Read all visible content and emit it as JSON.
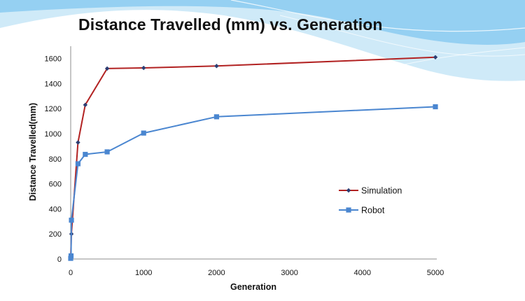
{
  "colors": {
    "simulation": "#b22222",
    "robot": "#4a86d0",
    "banner_light": "#a8d8f2",
    "banner_mid": "#7cc4ef",
    "axis": "#8c8c8c"
  },
  "chart_data": {
    "type": "line",
    "title": "Distance Travelled (mm) vs. Generation",
    "xlabel": "Generation",
    "ylabel": "Distance Travelled(mm)",
    "xlim": [
      0,
      5000
    ],
    "ylim": [
      0,
      1700
    ],
    "xticks": [
      0,
      1000,
      2000,
      3000,
      4000,
      5000
    ],
    "yticks": [
      0,
      200,
      400,
      600,
      800,
      1000,
      1200,
      1400,
      1600
    ],
    "grid": false,
    "legend_position": "right",
    "series": [
      {
        "name": "Simulation",
        "color": "#b22222",
        "marker": "diamond",
        "x": [
          0,
          10,
          100,
          200,
          500,
          1000,
          2000,
          5000
        ],
        "y": [
          5,
          200,
          930,
          1230,
          1520,
          1525,
          1540,
          1610
        ]
      },
      {
        "name": "Robot",
        "color": "#4a86d0",
        "marker": "square",
        "x": [
          0,
          5,
          10,
          100,
          200,
          500,
          1000,
          2000,
          5000
        ],
        "y": [
          5,
          25,
          310,
          760,
          835,
          855,
          1005,
          1135,
          1215
        ]
      }
    ]
  }
}
